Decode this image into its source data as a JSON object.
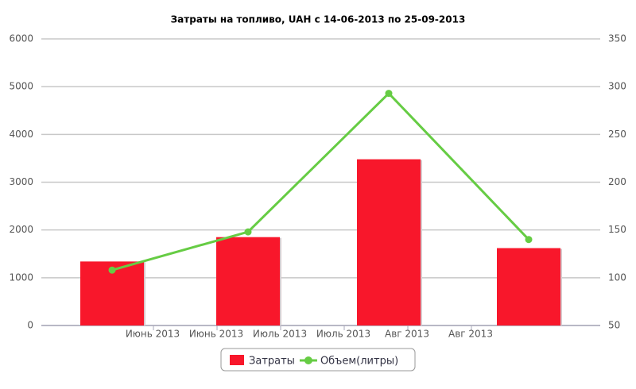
{
  "chart_data": {
    "type": "bar-line",
    "title": "Затраты на топливо, UAH с 14-06-2013 по 25-09-2013",
    "categories": [
      null,
      null,
      null,
      null
    ],
    "x_labels": [
      "Июнь 2013",
      "Июнь 2013",
      "Июль 2013",
      "Июль 2013",
      "Авг 2013",
      "Авг 2013"
    ],
    "series": [
      {
        "name": "Затраты",
        "type": "bar",
        "color": "#f8172b",
        "values": [
          1340,
          1850,
          3480,
          1620
        ]
      },
      {
        "name": "Объем(литры)",
        "type": "line",
        "color": "#66cc44",
        "axis": "y2",
        "values": [
          108,
          148,
          293,
          140
        ]
      }
    ],
    "ylim": [
      0,
      6000
    ],
    "yticks": [
      0,
      1000,
      2000,
      3000,
      4000,
      5000,
      6000
    ],
    "y2lim": [
      50,
      350
    ],
    "y2ticks": [
      50,
      100,
      150,
      200,
      250,
      300,
      350
    ],
    "grid": true,
    "legend": "bottom"
  }
}
